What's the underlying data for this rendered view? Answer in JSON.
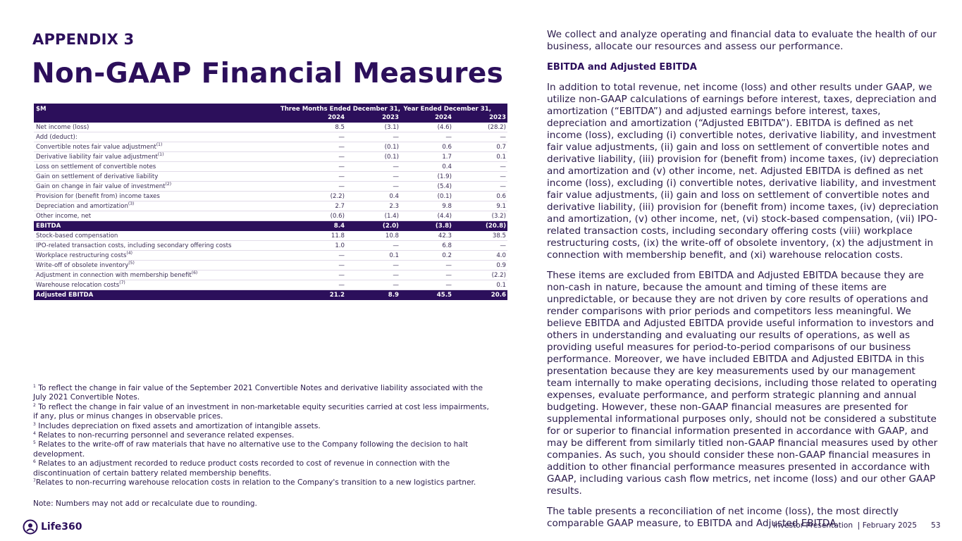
{
  "header": {
    "eyebrow": "APPENDIX 3",
    "title": "Non-GAAP Financial Measures"
  },
  "table": {
    "unit": "$M",
    "groups": [
      "Three Months Ended December 31,",
      "Year Ended December 31,"
    ],
    "years": [
      "2024",
      "2023",
      "2024",
      "2023"
    ],
    "rows": [
      {
        "label": "Net income (loss)",
        "values": [
          "8.5",
          "(3.1)",
          "(4.6)",
          "(28.2)"
        ]
      },
      {
        "label": "Add (deduct):",
        "values": [
          "—",
          "—",
          "—",
          "—"
        ]
      },
      {
        "label": "Convertible notes fair value adjustment",
        "note": "(1)",
        "values": [
          "—",
          "(0.1)",
          "0.6",
          "0.7"
        ]
      },
      {
        "label": "Derivative liability fair value adjustment",
        "note": "(1)",
        "values": [
          "—",
          "(0.1)",
          "1.7",
          "0.1"
        ]
      },
      {
        "label": "Loss on settlement of convertible notes",
        "values": [
          "—",
          "—",
          "0.4",
          "—"
        ]
      },
      {
        "label": "Gain on settlement of derivative liability",
        "values": [
          "—",
          "—",
          "(1.9)",
          "—"
        ]
      },
      {
        "label": "Gain on change in fair value of investment",
        "note": "(2)",
        "values": [
          "—",
          "—",
          "(5.4)",
          "—"
        ]
      },
      {
        "label": "Provision for (benefit from) income taxes",
        "values": [
          "(2.2)",
          "0.4",
          "(0.1)",
          "0.6"
        ]
      },
      {
        "label": "Depreciation and amortization",
        "note": "(3)",
        "values": [
          "2.7",
          "2.3",
          "9.8",
          "9.1"
        ]
      },
      {
        "label": "Other income, net",
        "values": [
          "(0.6)",
          "(1.4)",
          "(4.4)",
          "(3.2)"
        ]
      },
      {
        "label": "EBITDA",
        "highlight": true,
        "values": [
          "8.4",
          "(2.0)",
          "(3.8)",
          "(20.8)"
        ]
      },
      {
        "label": "Stock-based compensation",
        "values": [
          "11.8",
          "10.8",
          "42.3",
          "38.5"
        ]
      },
      {
        "label": "IPO-related transaction costs, including secondary offering costs",
        "values": [
          "1.0",
          "—",
          "6.8",
          "—"
        ]
      },
      {
        "label": "Workplace restructuring costs",
        "note": "(4)",
        "values": [
          "—",
          "0.1",
          "0.2",
          "4.0"
        ]
      },
      {
        "label": "Write-off of obsolete inventory",
        "note": "(5)",
        "values": [
          "—",
          "—",
          "—",
          "0.9"
        ]
      },
      {
        "label": "Adjustment in connection with membership benefit",
        "note": "(6)",
        "values": [
          "—",
          "—",
          "—",
          "(2.2)"
        ]
      },
      {
        "label": "Warehouse relocation costs",
        "note": "(7)",
        "values": [
          "—",
          "—",
          "—",
          "0.1"
        ]
      },
      {
        "label": "Adjusted EBITDA",
        "highlight": true,
        "values": [
          "21.2",
          "8.9",
          "45.5",
          "20.6"
        ]
      }
    ]
  },
  "footnotes": [
    {
      "mark": "1",
      "text": " To reflect the change in fair value of the September 2021 Convertible Notes and derivative liability associated with the July 2021 Convertible Notes."
    },
    {
      "mark": "2",
      "text": " To reflect the change in fair value of an investment in non-marketable equity securities carried at cost less impairments, if any, plus or minus changes in observable prices."
    },
    {
      "mark": "3",
      "text": " Includes depreciation on fixed assets and amortization of intangible assets."
    },
    {
      "mark": "4",
      "text": " Relates to non-recurring personnel and severance related expenses."
    },
    {
      "mark": "5",
      "text": " Relates to the write-off of raw materials that have no alternative use to the Company following the decision to halt development."
    },
    {
      "mark": "6",
      "text": " Relates to an adjustment recorded to reduce product costs recorded to cost of revenue in connection with the discontinuation of certain battery related membership benefits."
    },
    {
      "mark": "7",
      "text": "Relates to non-recurring warehouse relocation costs in relation to the Company's transition to a new logistics partner."
    }
  ],
  "note": "Note: Numbers may not add or recalculate due to rounding.",
  "body": {
    "intro": "We collect and analyze operating and financial data to evaluate the health of our business, allocate our resources and assess our performance.",
    "heading": "EBITDA and Adjusted EBITDA",
    "paragraphs": [
      "In addition to total revenue, net income (loss) and other results under GAAP, we utilize non-GAAP calculations of earnings before interest, taxes, depreciation and amortization (“EBITDA”) and adjusted earnings before interest, taxes, depreciation and amortization (“Adjusted EBITDA”). EBITDA is defined as net income (loss), excluding (i) convertible notes, derivative liability, and investment fair value adjustments, (ii) gain and loss on settlement of convertible notes and derivative liability, (iii) provision for (benefit from) income taxes, (iv) depreciation and amortization and (v) other income, net. Adjusted EBITDA is defined as net income (loss), excluding (i) convertible notes, derivative liability, and investment fair value adjustments, (ii) gain and loss on settlement of convertible notes and derivative liability, (iii) provision for (benefit from) income taxes, (iv) depreciation and amortization, (v) other income, net, (vi) stock-based compensation, (vii) IPO-related transaction costs, including secondary offering costs (viii) workplace restructuring costs, (ix) the write-off of obsolete inventory, (x) the adjustment in connection with membership benefit, and (xi) warehouse relocation costs.",
      "These items are excluded from EBITDA and Adjusted EBITDA because they are non-cash in nature, because the amount and timing of these items are unpredictable, or because they are not driven by core results of operations and render comparisons with prior periods and competitors less meaningful. We believe EBITDA and Adjusted EBITDA provide useful information to investors and others in understanding and evaluating our results of operations, as well as providing useful measures for period-to-period comparisons of our business performance. Moreover, we have included EBITDA and Adjusted EBITDA in this presentation because they are key measurements used by our management team internally to make operating decisions, including those related to operating expenses, evaluate performance, and perform strategic planning and annual budgeting. However, these non-GAAP financial measures are presented for supplemental informational purposes only, should not be considered a substitute for or superior to financial information presented in accordance with GAAP, and may be different from similarly titled non-GAAP financial measures used by other companies. As such, you should consider these non-GAAP financial measures in addition to other financial performance measures presented in accordance with GAAP, including various cash flow metrics, net income (loss) and our other GAAP results.",
      "The table presents a reconciliation of net income (loss), the most directly comparable GAAP measure, to EBITDA and Adjusted EBITDA."
    ]
  },
  "footer": {
    "logo": "Life360",
    "deck": "Investor Presentation  | February 2025",
    "page": "53"
  }
}
